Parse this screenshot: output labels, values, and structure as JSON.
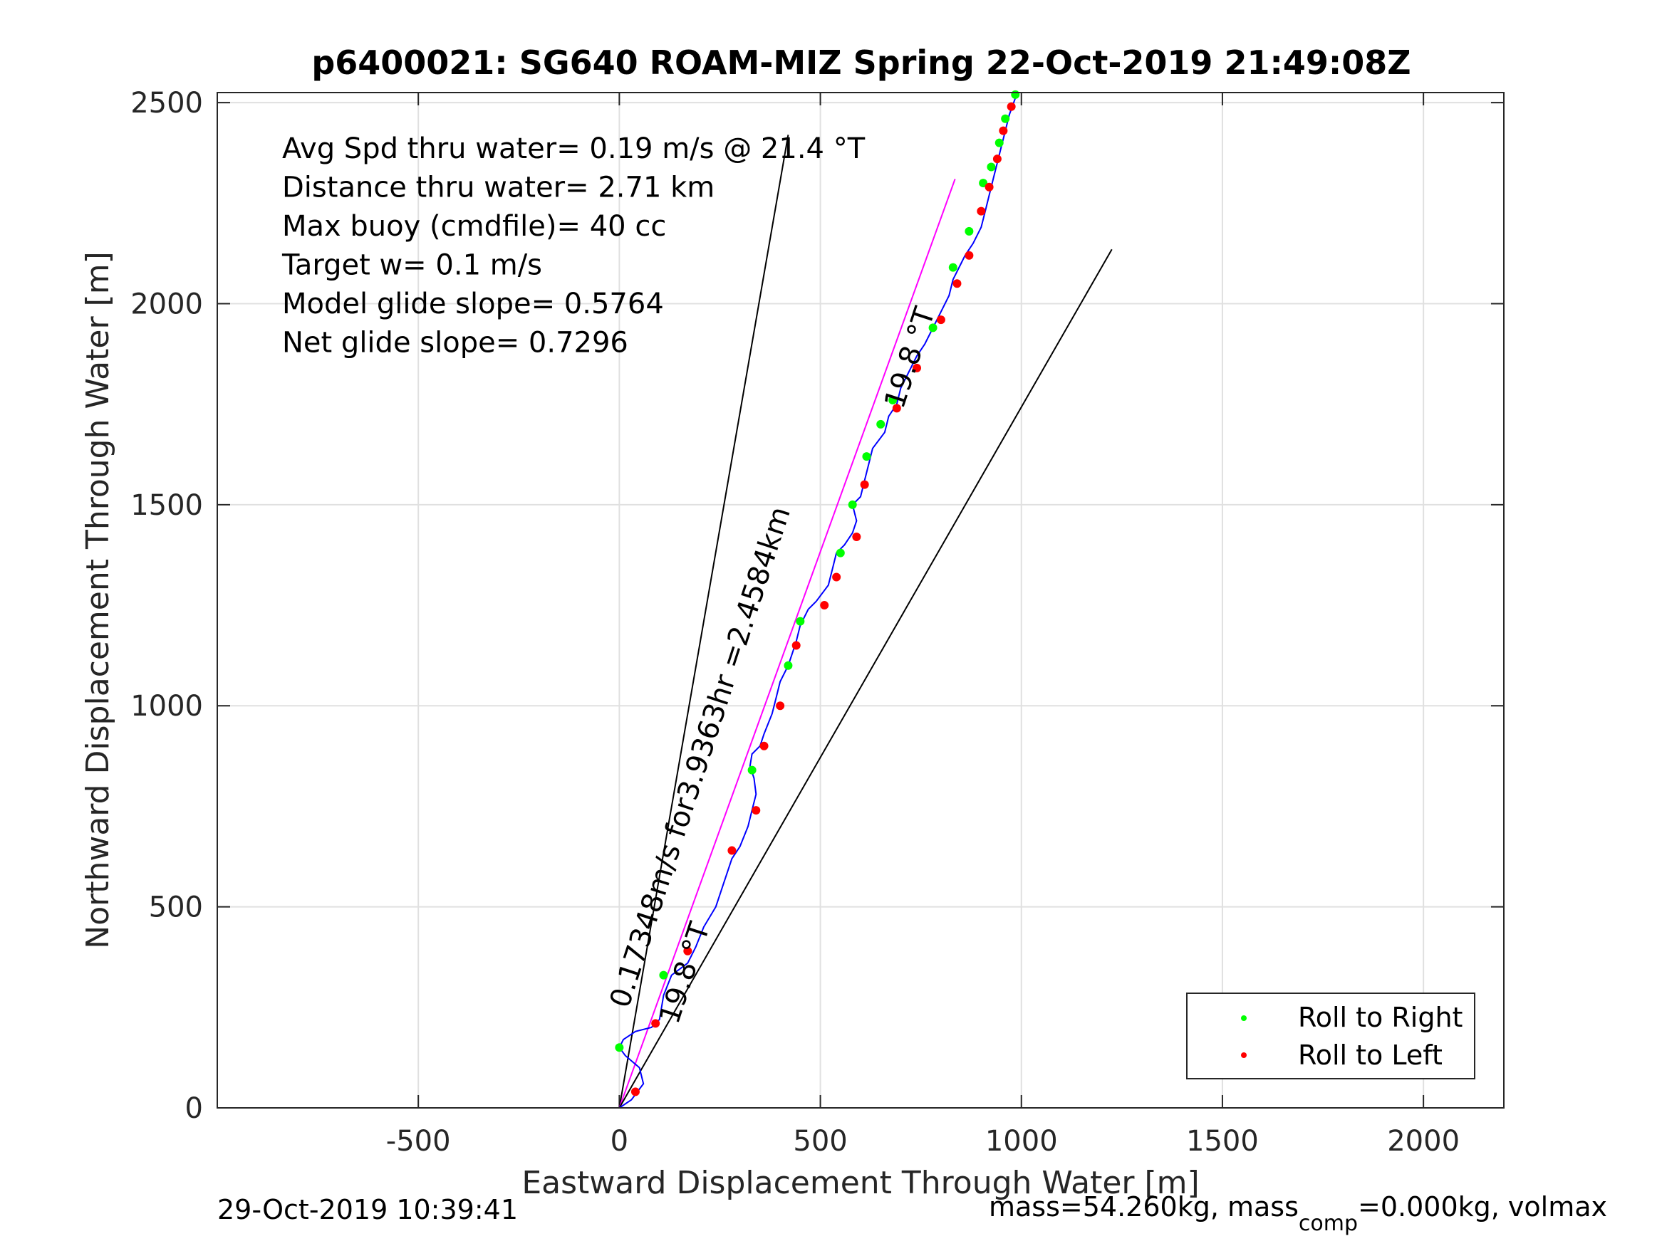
{
  "chart_data": {
    "type": "scatter",
    "title": "p6400021: SG640 ROAM-MIZ Spring 22-Oct-2019 21:49:08Z",
    "xlabel": "Eastward Displacement Through Water [m]",
    "ylabel": "Northward Displacement Through Water [m]",
    "xlim": [
      -1000,
      2200
    ],
    "ylim": [
      0,
      2525
    ],
    "xticks": [
      -500,
      0,
      500,
      1000,
      1500,
      2000
    ],
    "yticks": [
      0,
      500,
      1000,
      1500,
      2000,
      2500
    ],
    "grid": true,
    "legend_position": "bottom-right",
    "legend": [
      {
        "label": "Roll to Right",
        "color": "#00ff00"
      },
      {
        "label": "Roll to Left",
        "color": "#ff0000"
      }
    ],
    "stats_lines": [
      "Avg Spd thru water=  0.19 m/s @  21.4 °T",
      "Distance thru water=  2.71 km",
      "Max buoy (cmdfile)= 40 cc",
      "Target w= 0.1 m/s",
      "Model glide slope= 0.5764",
      "Net glide slope= 0.7296"
    ],
    "series": [
      {
        "name": "Track",
        "color": "#0000ff",
        "x": [
          0,
          30,
          60,
          50,
          15,
          0,
          10,
          40,
          80,
          100,
          110,
          130,
          170,
          190,
          210,
          240,
          260,
          280,
          300,
          320,
          330,
          340,
          335,
          325,
          330,
          350,
          360,
          380,
          390,
          400,
          420,
          430,
          440,
          450,
          470,
          490,
          520,
          530,
          540,
          560,
          580,
          590,
          580,
          600,
          610,
          620,
          630,
          660,
          670,
          690,
          700,
          720,
          740,
          760,
          780,
          800,
          820,
          830,
          850,
          860,
          880,
          900,
          910,
          920,
          930,
          940,
          950,
          960,
          970,
          990
        ],
        "y": [
          0,
          20,
          60,
          100,
          130,
          150,
          170,
          190,
          200,
          220,
          280,
          330,
          360,
          400,
          450,
          500,
          560,
          620,
          650,
          700,
          740,
          780,
          820,
          850,
          880,
          900,
          930,
          980,
          1020,
          1060,
          1100,
          1130,
          1160,
          1200,
          1240,
          1260,
          1300,
          1340,
          1380,
          1400,
          1430,
          1460,
          1500,
          1520,
          1560,
          1600,
          1640,
          1680,
          1720,
          1750,
          1790,
          1830,
          1870,
          1900,
          1940,
          1980,
          2020,
          2060,
          2100,
          2120,
          2150,
          2190,
          2230,
          2270,
          2310,
          2350,
          2390,
          2430,
          2470,
          2525
        ]
      },
      {
        "name": "Roll to Right",
        "color": "#00ff00",
        "x": [
          0,
          110,
          330,
          420,
          450,
          550,
          580,
          615,
          650,
          680,
          780,
          830,
          870,
          905,
          925,
          945,
          960,
          985
        ],
        "y": [
          150,
          330,
          840,
          1100,
          1210,
          1380,
          1500,
          1620,
          1700,
          1760,
          1940,
          2090,
          2180,
          2300,
          2340,
          2400,
          2460,
          2520
        ]
      },
      {
        "name": "Roll to Left",
        "color": "#ff0000",
        "x": [
          40,
          90,
          170,
          280,
          340,
          360,
          400,
          440,
          510,
          540,
          590,
          610,
          690,
          740,
          800,
          840,
          870,
          900,
          920,
          940,
          955,
          975
        ],
        "y": [
          40,
          210,
          390,
          640,
          740,
          900,
          1000,
          1150,
          1250,
          1320,
          1420,
          1550,
          1740,
          1840,
          1960,
          2050,
          2120,
          2230,
          2290,
          2360,
          2430,
          2490
        ]
      }
    ],
    "annotations": [
      {
        "text": "0.17348m/s for3.9363hr =2.4584km",
        "x": 22,
        "y": 245,
        "rotation_deg": -72
      },
      {
        "text": "19.8 °T",
        "x": 145,
        "y": 205,
        "rotation_deg": -72
      },
      {
        "text": "19.8 °T",
        "x": 705,
        "y": 1735,
        "rotation_deg": -72
      }
    ],
    "reference_lines": [
      {
        "name": "course-line-left",
        "color": "#000000",
        "x": [
          0,
          420
        ],
        "y": [
          0,
          2420
        ]
      },
      {
        "name": "mean-vector-line",
        "color": "#ff00ff",
        "x": [
          0,
          835
        ],
        "y": [
          0,
          2310
        ]
      },
      {
        "name": "course-line-right",
        "color": "#000000",
        "x": [
          0,
          1225
        ],
        "y": [
          0,
          2135
        ]
      }
    ]
  },
  "footer": {
    "timestamp": "29-Oct-2019 10:39:41",
    "mass_text_1": "mass=54.260kg, mass",
    "mass_sub": "comp",
    "mass_text_2": "=0.000kg, volmax"
  }
}
